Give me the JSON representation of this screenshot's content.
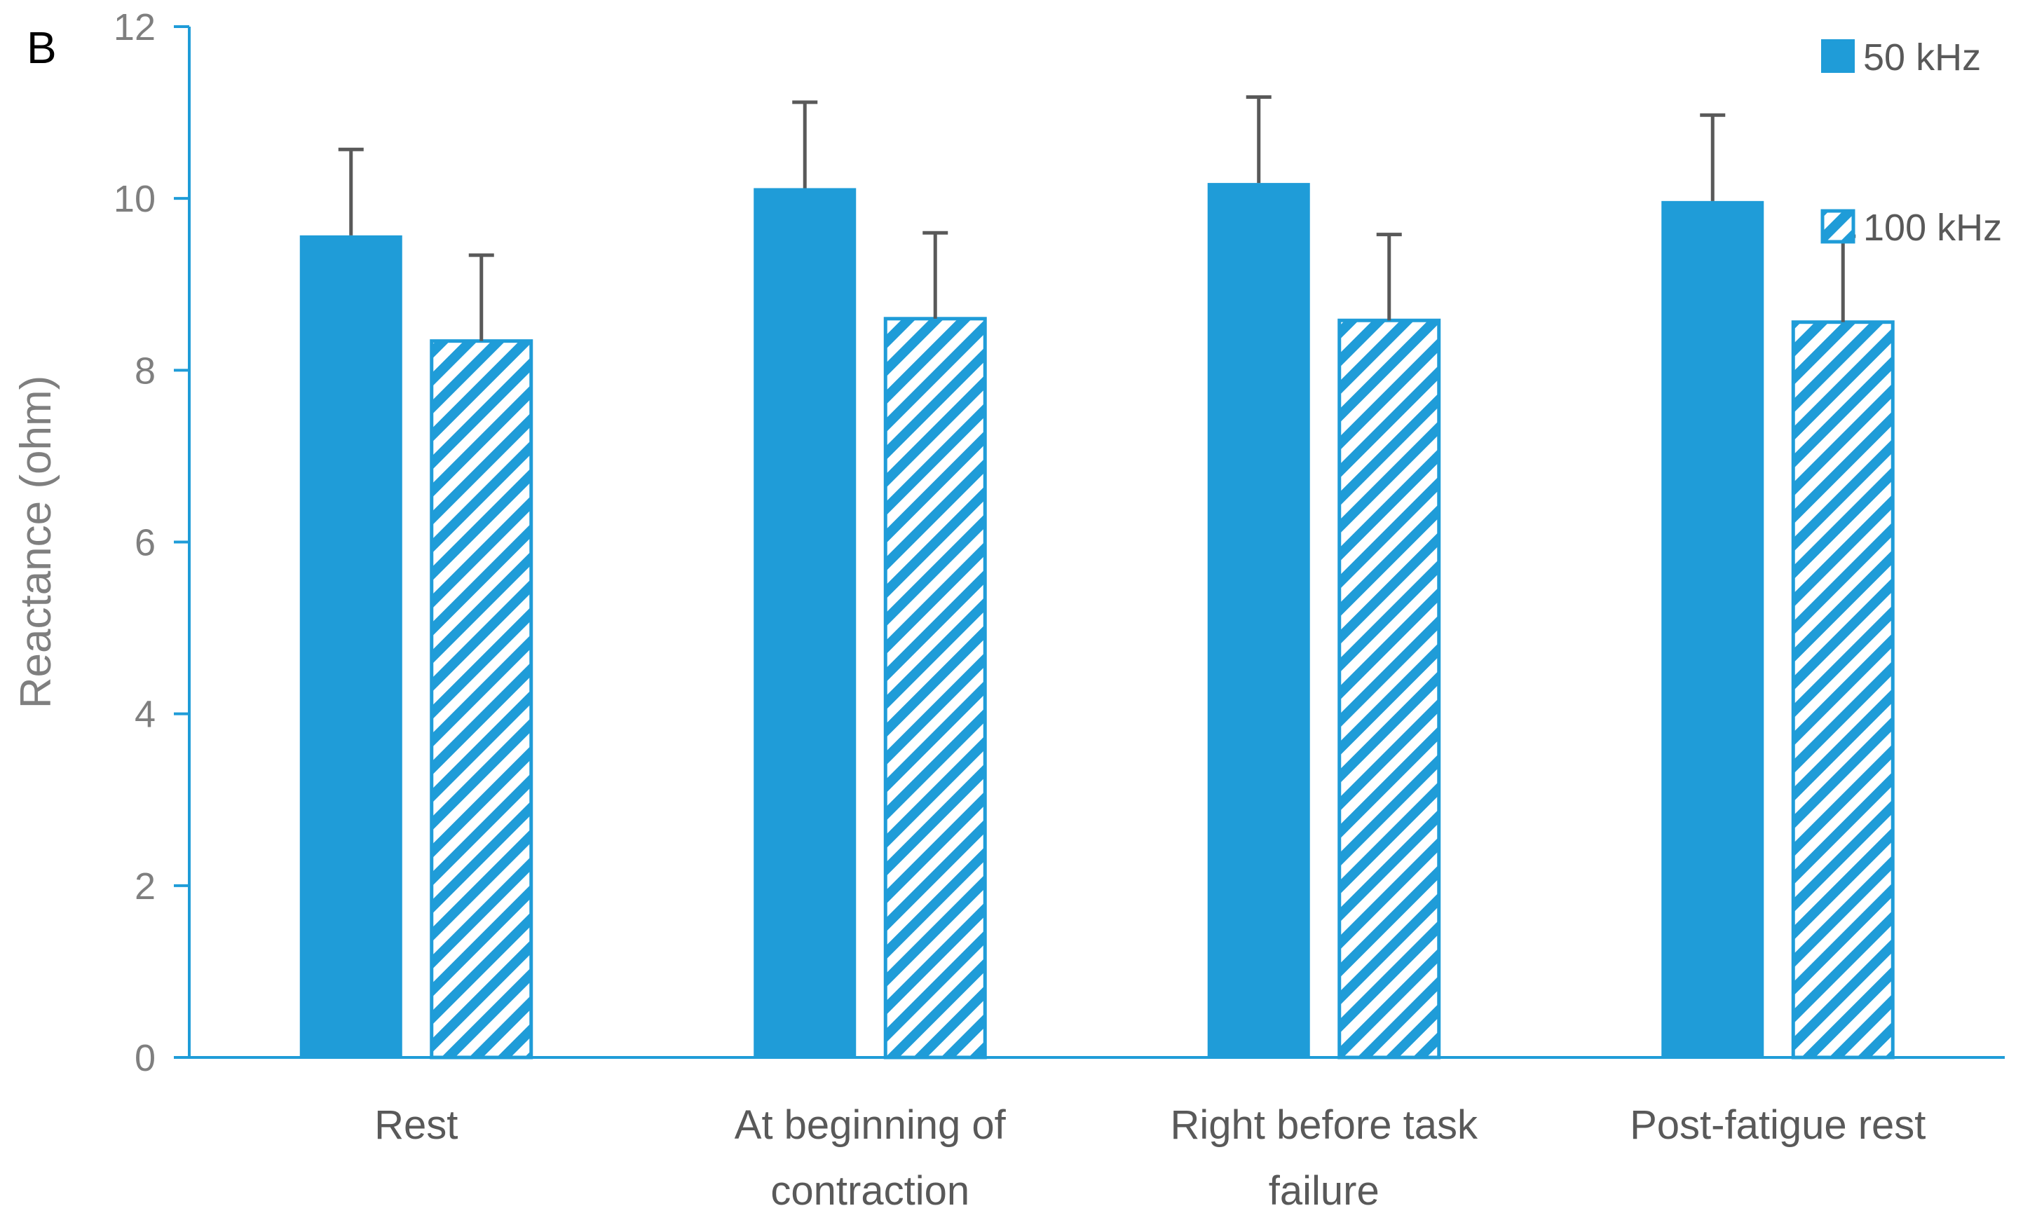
{
  "panel_label": "B",
  "colors": {
    "bar": "#1f9cd8",
    "axis": "#1f9cd8",
    "error_bar": "#595959",
    "hatch_bg": "#ffffff"
  },
  "chart_data": {
    "type": "bar",
    "categories": [
      [
        "Rest"
      ],
      [
        "At beginning of",
        "contraction"
      ],
      [
        "Right before task",
        "failure"
      ],
      [
        "Post-fatigue rest"
      ]
    ],
    "series": [
      {
        "name": "50 kHz",
        "pattern": "solid",
        "values": [
          9.57,
          10.12,
          10.18,
          9.97
        ],
        "errors": [
          1.0,
          1.0,
          1.0,
          1.0
        ]
      },
      {
        "name": "100 kHz",
        "pattern": "hatched",
        "values": [
          8.34,
          8.6,
          8.58,
          8.56
        ],
        "errors": [
          1.0,
          1.0,
          1.0,
          1.0
        ]
      }
    ],
    "title": "",
    "xlabel": "",
    "ylabel": "Reactance (ohm)",
    "ylim": [
      0,
      12
    ],
    "yticks": [
      "0",
      "2",
      "4",
      "6",
      "8",
      "10",
      "12"
    ],
    "grid": false,
    "legend_placement": "top-right"
  }
}
